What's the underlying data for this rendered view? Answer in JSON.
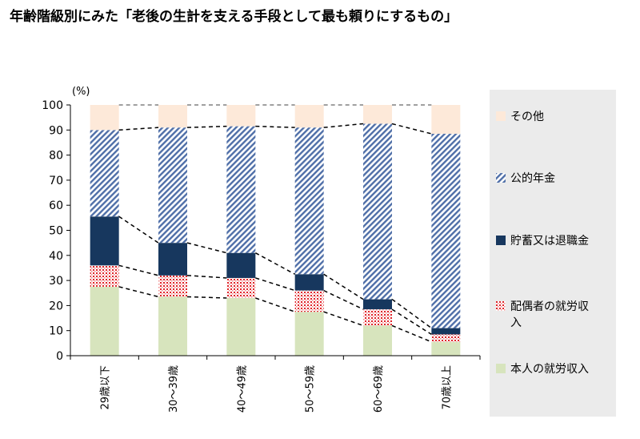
{
  "title": "年齢階級別にみた「老後の生計を支える手段として最も頼りにするもの」",
  "colors": {
    "self_income": "#d7e4bd",
    "spouse_income": "#e0252b",
    "savings": "#17375e",
    "pension": "#4f6fa8",
    "other": "#fde9d9",
    "legend_bg": "#ebebeb"
  },
  "chart_data": {
    "type": "bar",
    "stacked": true,
    "categories": [
      "29歳以下",
      "30～39歳",
      "40～49歳",
      "50～59歳",
      "60～69歳",
      "70歳以上"
    ],
    "series": [
      {
        "name": "本人の就労収入",
        "values": [
          27.5,
          23.5,
          23.0,
          17.5,
          12.0,
          5.5
        ],
        "color_key": "self_income",
        "pattern": "solid"
      },
      {
        "name": "配偶者の就労収入",
        "values": [
          8.5,
          8.5,
          8.0,
          8.5,
          6.5,
          3.0
        ],
        "color_key": "spouse_income",
        "pattern": "dots"
      },
      {
        "name": "貯蓄又は退職金",
        "values": [
          19.5,
          13.0,
          10.0,
          6.5,
          4.0,
          2.5
        ],
        "color_key": "savings",
        "pattern": "solid"
      },
      {
        "name": "公的年金",
        "values": [
          34.5,
          46.0,
          50.5,
          58.5,
          70.0,
          77.5
        ],
        "color_key": "pension",
        "pattern": "hatch"
      },
      {
        "name": "その他",
        "values": [
          10.0,
          9.0,
          8.5,
          9.0,
          7.5,
          11.5
        ],
        "color_key": "other",
        "pattern": "solid"
      }
    ],
    "ylabel": "(%)",
    "ylim": [
      0,
      100
    ],
    "yticks": [
      0,
      10,
      20,
      30,
      40,
      50,
      60,
      70,
      80,
      90,
      100
    ],
    "legend_position": "right",
    "connector_lines": true
  }
}
